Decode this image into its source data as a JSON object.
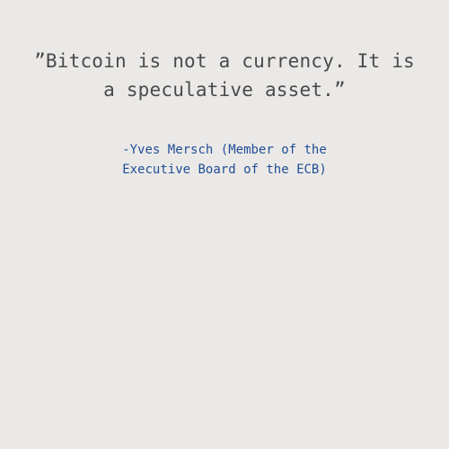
{
  "colors": {
    "background": "#ebe9e7",
    "quote_text": "#4a4a4a",
    "attribution_text": "#1f4e96"
  },
  "quote": {
    "lines": [
      "”Bitcoin is not a currency. It is",
      "a speculative asset.”"
    ]
  },
  "attribution": {
    "lines": [
      "-Yves Mersch (Member of the",
      "Executive Board of the ECB)"
    ]
  }
}
